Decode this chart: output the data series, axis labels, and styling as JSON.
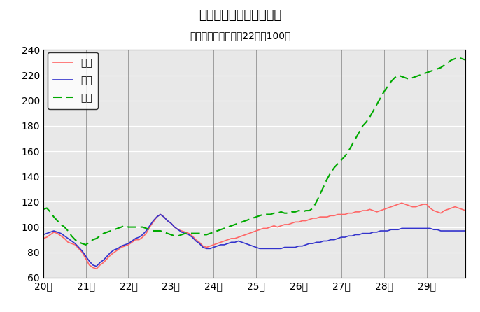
{
  "title": "鳥取県鉱工業指数の推移",
  "subtitle": "（季節調整済、平成22年＝100）",
  "ylim": [
    60,
    240
  ],
  "yticks": [
    60,
    80,
    100,
    120,
    140,
    160,
    180,
    200,
    220,
    240
  ],
  "xtick_labels": [
    "20年",
    "21年",
    "22年",
    "23年",
    "24年",
    "25年",
    "26年",
    "27年",
    "28年",
    "29年"
  ],
  "outer_bg_color": "#ffffff",
  "plot_bg_color": "#e8e8e8",
  "seisan_color": "#ff6666",
  "shukka_color": "#3333cc",
  "zaiko_color": "#00aa00",
  "legend_labels": [
    "生産",
    "出荷",
    "在庫"
  ],
  "n_points": 120,
  "seisan": [
    91,
    92,
    94,
    96,
    95,
    93,
    91,
    88,
    87,
    86,
    83,
    80,
    75,
    70,
    68,
    67,
    70,
    72,
    75,
    78,
    80,
    82,
    84,
    85,
    86,
    88,
    90,
    90,
    92,
    95,
    100,
    104,
    108,
    110,
    108,
    105,
    103,
    100,
    98,
    97,
    96,
    95,
    93,
    90,
    88,
    85,
    84,
    85,
    86,
    87,
    88,
    89,
    90,
    91,
    91,
    92,
    93,
    94,
    95,
    96,
    97,
    98,
    99,
    99,
    100,
    101,
    100,
    101,
    102,
    102,
    103,
    104,
    104,
    105,
    105,
    106,
    107,
    107,
    108,
    108,
    108,
    109,
    109,
    110,
    110,
    110,
    111,
    111,
    112,
    112,
    113,
    113,
    114,
    113,
    112,
    113,
    114,
    115,
    116,
    117,
    118,
    119,
    118,
    117,
    116,
    116,
    117,
    118,
    118,
    115,
    113,
    112,
    111,
    113,
    114,
    115,
    116,
    115,
    114,
    113
  ],
  "shukka": [
    94,
    95,
    96,
    97,
    96,
    95,
    93,
    91,
    89,
    87,
    84,
    81,
    77,
    73,
    70,
    69,
    72,
    74,
    77,
    80,
    82,
    83,
    85,
    86,
    87,
    89,
    91,
    92,
    94,
    97,
    101,
    105,
    108,
    110,
    108,
    105,
    103,
    100,
    98,
    96,
    95,
    94,
    92,
    89,
    87,
    84,
    83,
    83,
    84,
    85,
    86,
    86,
    87,
    88,
    88,
    89,
    88,
    87,
    86,
    85,
    84,
    83,
    83,
    83,
    83,
    83,
    83,
    83,
    84,
    84,
    84,
    84,
    85,
    85,
    86,
    87,
    87,
    88,
    88,
    89,
    89,
    90,
    90,
    91,
    92,
    92,
    93,
    93,
    94,
    94,
    95,
    95,
    95,
    96,
    96,
    97,
    97,
    97,
    98,
    98,
    98,
    99,
    99,
    99,
    99,
    99,
    99,
    99,
    99,
    99,
    98,
    98,
    97,
    97,
    97,
    97,
    97,
    97,
    97,
    97
  ],
  "zaiko": [
    114,
    115,
    112,
    108,
    105,
    102,
    100,
    97,
    93,
    90,
    88,
    87,
    86,
    88,
    90,
    91,
    93,
    95,
    96,
    97,
    98,
    99,
    100,
    101,
    100,
    100,
    100,
    100,
    100,
    99,
    98,
    97,
    97,
    97,
    96,
    95,
    94,
    93,
    93,
    94,
    95,
    95,
    95,
    95,
    95,
    94,
    94,
    95,
    96,
    97,
    98,
    99,
    100,
    101,
    102,
    103,
    104,
    105,
    106,
    107,
    108,
    109,
    110,
    110,
    110,
    111,
    111,
    112,
    111,
    111,
    112,
    112,
    113,
    112,
    113,
    113,
    115,
    120,
    126,
    132,
    138,
    143,
    147,
    150,
    153,
    156,
    160,
    165,
    170,
    175,
    180,
    183,
    187,
    192,
    197,
    202,
    207,
    211,
    215,
    218,
    220,
    219,
    218,
    217,
    218,
    219,
    220,
    221,
    222,
    223,
    224,
    225,
    226,
    228,
    230,
    232,
    233,
    234,
    233,
    232
  ]
}
